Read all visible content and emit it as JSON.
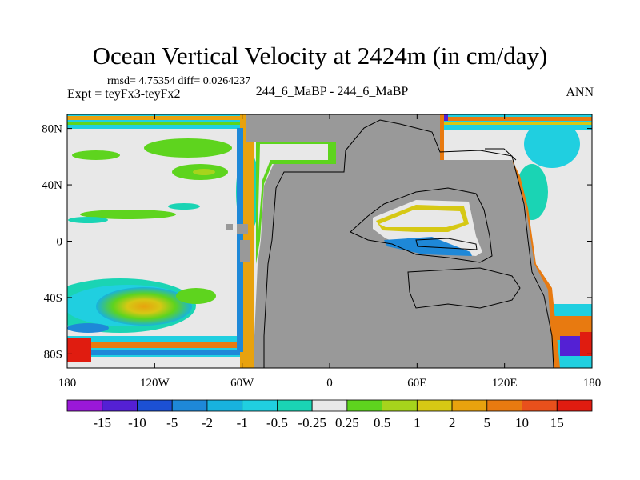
{
  "title": "Ocean Vertical Velocity at 2424m (in cm/day)",
  "stats": "rmsd= 4.75354 diff= 0.0264237",
  "expt": "Expt = teyFx3-teyFx2",
  "center_label": "244_6_MaBP - 244_6_MaBP",
  "season": "ANN",
  "map": {
    "projection": "cylindrical equidistant",
    "lon_range": [
      -180,
      180
    ],
    "lat_range": [
      -90,
      90
    ],
    "x_ticks": [
      "180",
      "120W",
      "60W",
      "0",
      "60E",
      "120E",
      "180"
    ],
    "y_ticks": [
      "80N",
      "40N",
      "0",
      "40S",
      "80S"
    ],
    "land_color": "#999999",
    "neutral_color": "#e8e8e8"
  },
  "colorbar": {
    "labels": [
      "-15",
      "-10",
      "-5",
      "-2",
      "-1",
      "-0.5",
      "-0.25",
      "0.25",
      "0.5",
      "1",
      "2",
      "5",
      "10",
      "15"
    ],
    "colors": [
      "#9a18d8",
      "#5420d4",
      "#1c50d4",
      "#1e88d8",
      "#18b2de",
      "#20cfe0",
      "#1ad4b4",
      "#e8e8e8",
      "#5ed41e",
      "#a6d41c",
      "#d6c814",
      "#e8a20e",
      "#e87a10",
      "#e8501c",
      "#e01c10"
    ]
  }
}
